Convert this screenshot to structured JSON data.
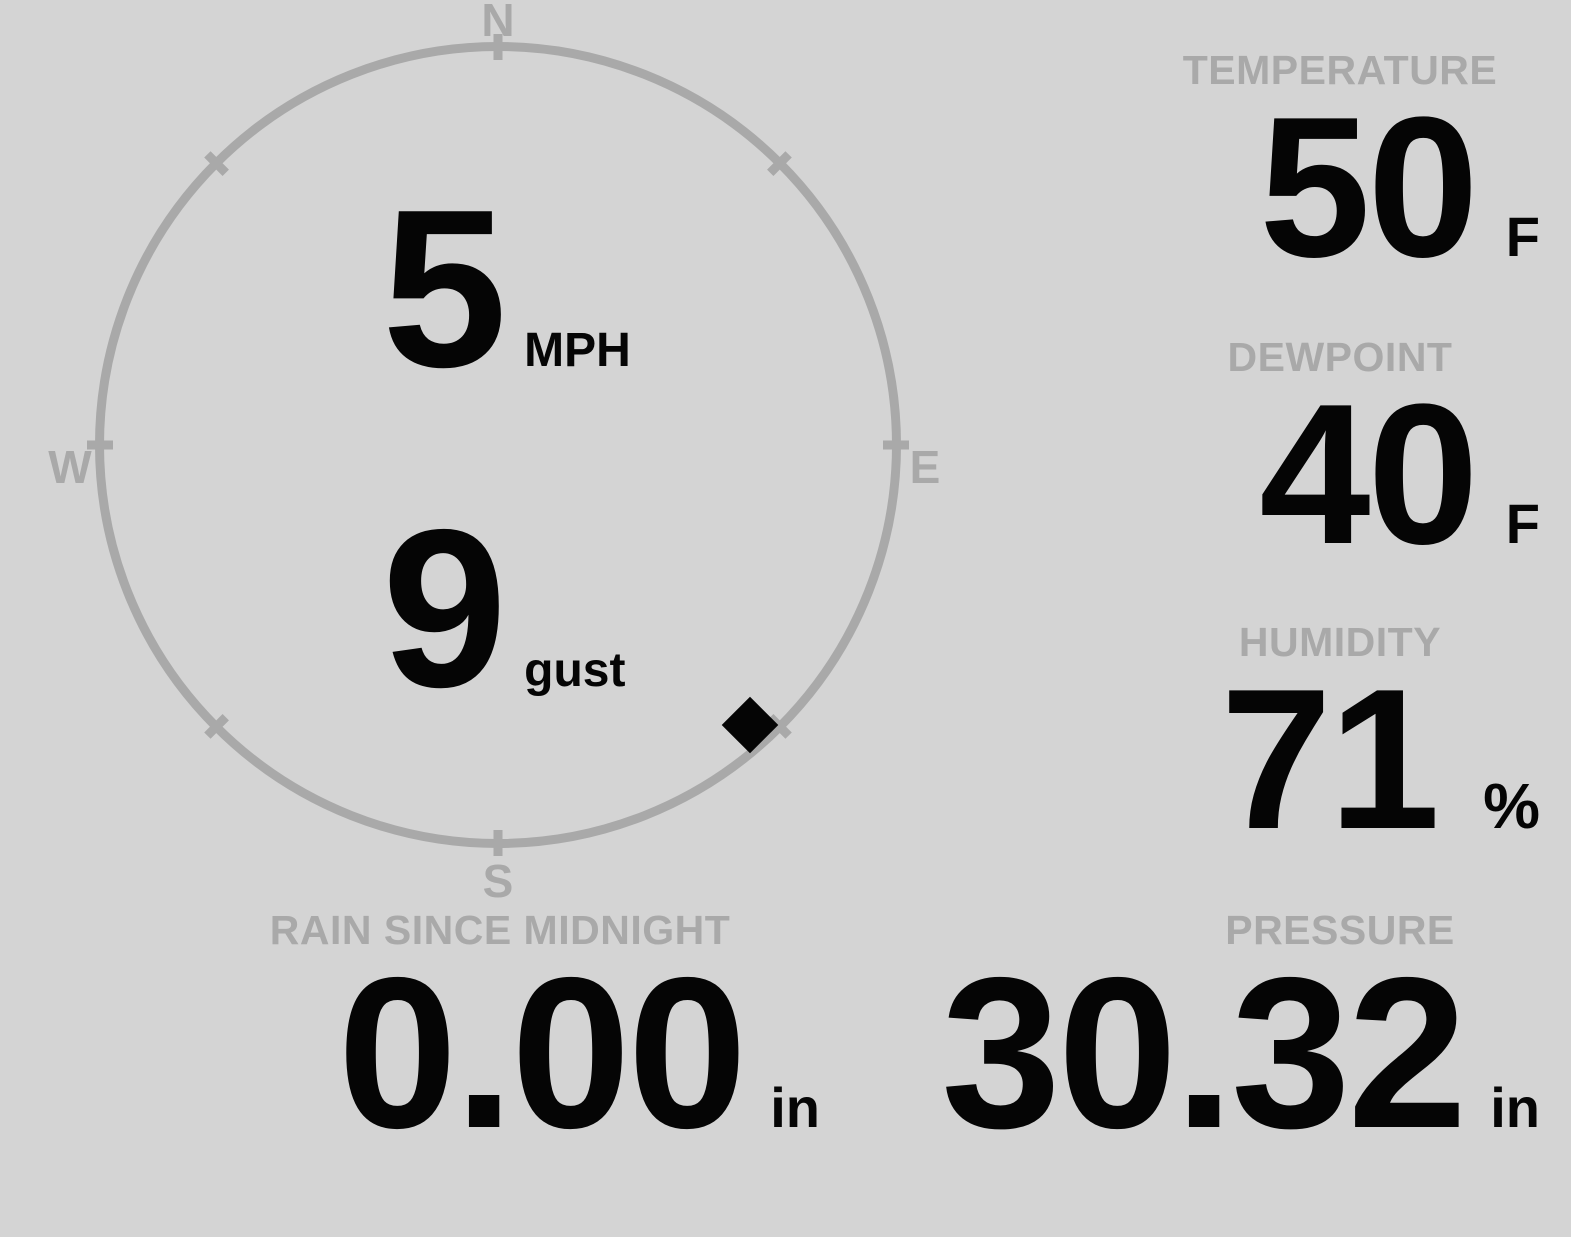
{
  "colors": {
    "background": "#d4d4d4",
    "muted": "#a9a9a9",
    "ink": "#050505"
  },
  "compass": {
    "cardinals": {
      "n": "N",
      "e": "E",
      "s": "S",
      "w": "W"
    },
    "speed": {
      "value": "5",
      "unit": "MPH"
    },
    "gust": {
      "value": "9",
      "unit": "gust"
    },
    "wind_direction_deg": 138,
    "marker": "diamond"
  },
  "metrics": {
    "temperature": {
      "label": "TEMPERATURE",
      "value": "50",
      "unit": "F"
    },
    "dewpoint": {
      "label": "DEWPOINT",
      "value": "40",
      "unit": "F"
    },
    "humidity": {
      "label": "HUMIDITY",
      "value": "71",
      "unit": "%"
    },
    "pressure": {
      "label": "PRESSURE",
      "value": "30.32",
      "unit": "in"
    },
    "rain": {
      "label": "RAIN SINCE MIDNIGHT",
      "value": "0.00",
      "unit": "in"
    }
  }
}
